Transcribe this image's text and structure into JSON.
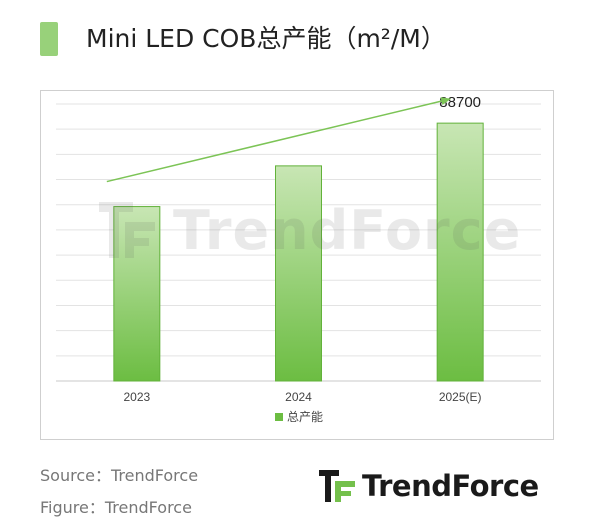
{
  "title": "Mini LED COB总产能（m²/M）",
  "footer": {
    "source": "Source：TrendForce",
    "figure": "Figure：TrendForce"
  },
  "brand": {
    "name": "TrendForce",
    "accent": "#74c04c",
    "logo_dark": "#1a1a1a"
  },
  "chart_data": {
    "type": "bar",
    "categories": [
      "2023",
      "2024",
      "2025(E)"
    ],
    "series": [
      {
        "name": "总产能",
        "values": [
          60000,
          74000,
          88700
        ]
      }
    ],
    "data_labels": [
      null,
      null,
      "88700"
    ],
    "ylim": [
      0,
      97000
    ],
    "grid": true,
    "legend": "bottom",
    "trend_arrow": true,
    "colors": {
      "bar_top": "#c8e6b4",
      "bar_bottom": "#6cbd42",
      "bar_border": "#62b23a",
      "grid": "#e3e3e3",
      "arrow": "#7cc456"
    }
  }
}
